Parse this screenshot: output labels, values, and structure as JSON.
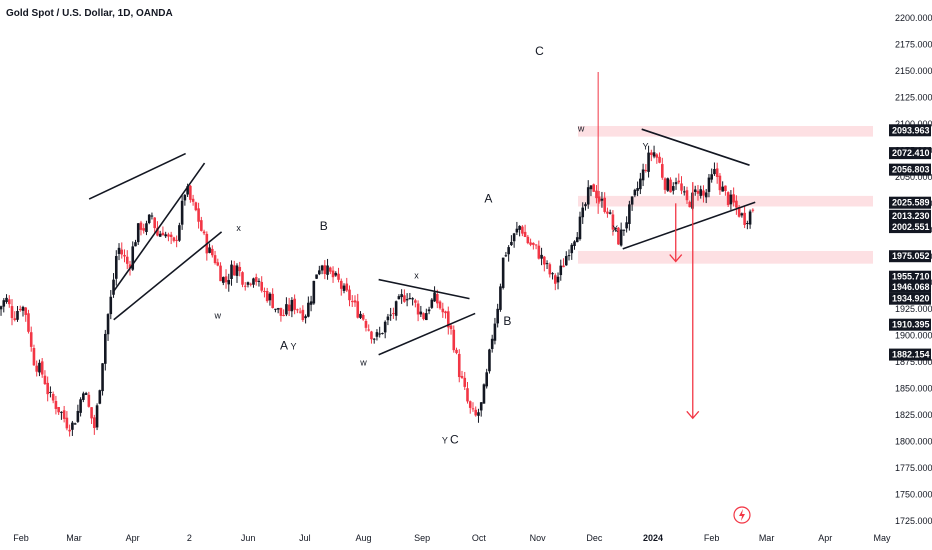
{
  "header": {
    "title": "Gold Spot / U.S. Dollar, 1D, OANDA"
  },
  "colors": {
    "up": "#131722",
    "down": "#f23645",
    "zone": "#fde0e3",
    "tag": "#131722",
    "arrow": "#f23645"
  },
  "chart_data": {
    "type": "candlestick",
    "symbol": "Gold Spot / U.S. Dollar",
    "interval": "1D",
    "source": "OANDA",
    "y_axis": {
      "range": [
        1725,
        2200
      ],
      "ticks": [
        {
          "value": 2200,
          "label": "2200.000"
        },
        {
          "value": 2175,
          "label": "2175.000"
        },
        {
          "value": 2150,
          "label": "2150.000"
        },
        {
          "value": 2125,
          "label": "2125.000"
        },
        {
          "value": 2100,
          "label": "2100.000"
        },
        {
          "value": 2075,
          "label": "2075.000"
        },
        {
          "value": 2050,
          "label": "2050.000"
        },
        {
          "value": 2025,
          "label": "2025.000"
        },
        {
          "value": 2000,
          "label": "2000.000"
        },
        {
          "value": 1975,
          "label": "1975.000"
        },
        {
          "value": 1950,
          "label": "1950.000"
        },
        {
          "value": 1925,
          "label": "1925.000"
        },
        {
          "value": 1900,
          "label": "1900.000"
        },
        {
          "value": 1875,
          "label": "1875.000"
        },
        {
          "value": 1850,
          "label": "1850.000"
        },
        {
          "value": 1825,
          "label": "1825.000"
        },
        {
          "value": 1800,
          "label": "1800.000"
        },
        {
          "value": 1775,
          "label": "1775.000"
        },
        {
          "value": 1750,
          "label": "1750.000"
        },
        {
          "value": 1725,
          "label": "1725.000"
        }
      ]
    },
    "price_tags": [
      {
        "value": 2093.963,
        "label": "2093.963"
      },
      {
        "value": 2072.41,
        "label": "2072.410"
      },
      {
        "value": 2056.803,
        "label": "2056.803"
      },
      {
        "value": 2025.589,
        "label": "2025.589"
      },
      {
        "value": 2013.23,
        "label": "2013.230"
      },
      {
        "value": 2002.551,
        "label": "2002.551"
      },
      {
        "value": 1975.052,
        "label": "1975.052"
      },
      {
        "value": 1955.71,
        "label": "1955.710"
      },
      {
        "value": 1946.068,
        "label": "1946.068"
      },
      {
        "value": 1934.92,
        "label": "1934.920"
      },
      {
        "value": 1910.395,
        "label": "1910.395"
      },
      {
        "value": 1882.154,
        "label": "1882.154"
      }
    ],
    "x_axis": {
      "ticks": [
        {
          "label": "Feb",
          "day": 0
        },
        {
          "label": "Mar",
          "day": 28
        },
        {
          "label": "Apr",
          "day": 59
        },
        {
          "label": "2",
          "day": 89
        },
        {
          "label": "Jun",
          "day": 120
        },
        {
          "label": "Jul",
          "day": 150
        },
        {
          "label": "Aug",
          "day": 181
        },
        {
          "label": "Sep",
          "day": 212
        },
        {
          "label": "Oct",
          "day": 242
        },
        {
          "label": "Nov",
          "day": 273
        },
        {
          "label": "Dec",
          "day": 303
        },
        {
          "label": "2024",
          "day": 334
        },
        {
          "label": "Feb",
          "day": 365
        },
        {
          "label": "Mar",
          "day": 394
        },
        {
          "label": "Apr",
          "day": 425
        },
        {
          "label": "May",
          "day": 455
        }
      ]
    },
    "price_path": [
      {
        "day": -12,
        "price": 1925
      },
      {
        "day": -8,
        "price": 1935
      },
      {
        "day": -4,
        "price": 1918
      },
      {
        "day": 0,
        "price": 1930
      },
      {
        "day": 3,
        "price": 1920
      },
      {
        "day": 6,
        "price": 1880
      },
      {
        "day": 9,
        "price": 1870
      },
      {
        "day": 12,
        "price": 1862
      },
      {
        "day": 15,
        "price": 1842
      },
      {
        "day": 18,
        "price": 1836
      },
      {
        "day": 21,
        "price": 1828
      },
      {
        "day": 24,
        "price": 1818
      },
      {
        "day": 27,
        "price": 1815
      },
      {
        "day": 30,
        "price": 1828
      },
      {
        "day": 33,
        "price": 1852
      },
      {
        "day": 36,
        "price": 1830
      },
      {
        "day": 39,
        "price": 1812
      },
      {
        "day": 42,
        "price": 1860
      },
      {
        "day": 45,
        "price": 1910
      },
      {
        "day": 48,
        "price": 1940
      },
      {
        "day": 51,
        "price": 1985
      },
      {
        "day": 54,
        "price": 1975
      },
      {
        "day": 57,
        "price": 1965
      },
      {
        "day": 60,
        "price": 1990
      },
      {
        "day": 63,
        "price": 2005
      },
      {
        "day": 66,
        "price": 2000
      },
      {
        "day": 69,
        "price": 2015
      },
      {
        "day": 72,
        "price": 1995
      },
      {
        "day": 75,
        "price": 2000
      },
      {
        "day": 78,
        "price": 1990
      },
      {
        "day": 81,
        "price": 1985
      },
      {
        "day": 84,
        "price": 2010
      },
      {
        "day": 87,
        "price": 2040
      },
      {
        "day": 90,
        "price": 2025
      },
      {
        "day": 93,
        "price": 2015
      },
      {
        "day": 96,
        "price": 1995
      },
      {
        "day": 99,
        "price": 1980
      },
      {
        "day": 102,
        "price": 1975
      },
      {
        "day": 105,
        "price": 1960
      },
      {
        "day": 108,
        "price": 1950
      },
      {
        "day": 111,
        "price": 1962
      },
      {
        "day": 114,
        "price": 1965
      },
      {
        "day": 117,
        "price": 1955
      },
      {
        "day": 120,
        "price": 1950
      },
      {
        "day": 123,
        "price": 1960
      },
      {
        "day": 126,
        "price": 1945
      },
      {
        "day": 129,
        "price": 1940
      },
      {
        "day": 132,
        "price": 1935
      },
      {
        "day": 135,
        "price": 1925
      },
      {
        "day": 138,
        "price": 1918
      },
      {
        "day": 141,
        "price": 1925
      },
      {
        "day": 144,
        "price": 1930
      },
      {
        "day": 147,
        "price": 1925
      },
      {
        "day": 150,
        "price": 1920
      },
      {
        "day": 153,
        "price": 1935
      },
      {
        "day": 156,
        "price": 1960
      },
      {
        "day": 159,
        "price": 1970
      },
      {
        "day": 162,
        "price": 1960
      },
      {
        "day": 165,
        "price": 1955
      },
      {
        "day": 168,
        "price": 1950
      },
      {
        "day": 171,
        "price": 1940
      },
      {
        "day": 174,
        "price": 1935
      },
      {
        "day": 177,
        "price": 1925
      },
      {
        "day": 180,
        "price": 1920
      },
      {
        "day": 183,
        "price": 1910
      },
      {
        "day": 186,
        "price": 1900
      },
      {
        "day": 189,
        "price": 1898
      },
      {
        "day": 192,
        "price": 1910
      },
      {
        "day": 195,
        "price": 1918
      },
      {
        "day": 198,
        "price": 1925
      },
      {
        "day": 201,
        "price": 1935
      },
      {
        "day": 204,
        "price": 1940
      },
      {
        "day": 207,
        "price": 1932
      },
      {
        "day": 210,
        "price": 1925
      },
      {
        "day": 213,
        "price": 1918
      },
      {
        "day": 216,
        "price": 1930
      },
      {
        "day": 219,
        "price": 1935
      },
      {
        "day": 222,
        "price": 1925
      },
      {
        "day": 225,
        "price": 1915
      },
      {
        "day": 228,
        "price": 1900
      },
      {
        "day": 231,
        "price": 1870
      },
      {
        "day": 234,
        "price": 1850
      },
      {
        "day": 237,
        "price": 1830
      },
      {
        "day": 240,
        "price": 1822
      },
      {
        "day": 243,
        "price": 1832
      },
      {
        "day": 246,
        "price": 1860
      },
      {
        "day": 249,
        "price": 1900
      },
      {
        "day": 252,
        "price": 1930
      },
      {
        "day": 255,
        "price": 1975
      },
      {
        "day": 258,
        "price": 1985
      },
      {
        "day": 261,
        "price": 1995
      },
      {
        "day": 264,
        "price": 2005
      },
      {
        "day": 267,
        "price": 1990
      },
      {
        "day": 270,
        "price": 1985
      },
      {
        "day": 273,
        "price": 1980
      },
      {
        "day": 276,
        "price": 1970
      },
      {
        "day": 279,
        "price": 1960
      },
      {
        "day": 282,
        "price": 1950
      },
      {
        "day": 285,
        "price": 1960
      },
      {
        "day": 288,
        "price": 1975
      },
      {
        "day": 291,
        "price": 1990
      },
      {
        "day": 294,
        "price": 2000
      },
      {
        "day": 297,
        "price": 2015
      },
      {
        "day": 300,
        "price": 2035
      },
      {
        "day": 303,
        "price": 2040
      },
      {
        "day": 305,
        "price": 2030
      },
      {
        "day": 307,
        "price": 2025
      },
      {
        "day": 310,
        "price": 2020
      },
      {
        "day": 313,
        "price": 2000
      },
      {
        "day": 316,
        "price": 1990
      },
      {
        "day": 319,
        "price": 2005
      },
      {
        "day": 322,
        "price": 2020
      },
      {
        "day": 325,
        "price": 2035
      },
      {
        "day": 328,
        "price": 2050
      },
      {
        "day": 331,
        "price": 2065
      },
      {
        "day": 334,
        "price": 2075
      },
      {
        "day": 337,
        "price": 2065
      },
      {
        "day": 340,
        "price": 2045
      },
      {
        "day": 343,
        "price": 2040
      },
      {
        "day": 346,
        "price": 2050
      },
      {
        "day": 349,
        "price": 2035
      },
      {
        "day": 352,
        "price": 2025
      },
      {
        "day": 355,
        "price": 2030
      },
      {
        "day": 358,
        "price": 2040
      },
      {
        "day": 361,
        "price": 2030
      },
      {
        "day": 364,
        "price": 2045
      },
      {
        "day": 367,
        "price": 2055
      },
      {
        "day": 370,
        "price": 2040
      },
      {
        "day": 373,
        "price": 2030
      },
      {
        "day": 376,
        "price": 2025
      },
      {
        "day": 379,
        "price": 2018
      },
      {
        "day": 382,
        "price": 2010
      },
      {
        "day": 385,
        "price": 2015
      },
      {
        "day": 388,
        "price": 2025
      }
    ],
    "spikes": [
      {
        "day": 305,
        "high": 2149,
        "low": 2015
      }
    ],
    "zones": [
      {
        "from": 2088,
        "to": 2098
      },
      {
        "from": 2022,
        "to": 2032
      },
      {
        "from": 1968,
        "to": 1980
      }
    ],
    "trendlines": [
      {
        "from": {
          "day": 49,
          "price": 1942
        },
        "to": {
          "day": 97,
          "price": 2063
        }
      },
      {
        "from": {
          "day": 36,
          "price": 2029
        },
        "to": {
          "day": 87,
          "price": 2072
        }
      },
      {
        "from": {
          "day": 49,
          "price": 1915
        },
        "to": {
          "day": 106,
          "price": 1998
        }
      },
      {
        "from": {
          "day": 189,
          "price": 1953
        },
        "to": {
          "day": 237,
          "price": 1935
        }
      },
      {
        "from": {
          "day": 189,
          "price": 1882
        },
        "to": {
          "day": 240,
          "price": 1921
        }
      },
      {
        "from": {
          "day": 328,
          "price": 2095
        },
        "to": {
          "day": 385,
          "price": 2061
        }
      },
      {
        "from": {
          "day": 318,
          "price": 1982
        },
        "to": {
          "day": 388,
          "price": 2026
        }
      }
    ],
    "wave_labels": [
      {
        "text": "x",
        "day": 115,
        "price": 1999,
        "size": "small"
      },
      {
        "text": "w",
        "day": 104,
        "price": 1916,
        "size": "small"
      },
      {
        "text": "A",
        "day": 139,
        "price": 1887,
        "size": "big"
      },
      {
        "text": "Y",
        "day": 144,
        "price": 1887,
        "size": "small"
      },
      {
        "text": "B",
        "day": 160,
        "price": 2000,
        "size": "big"
      },
      {
        "text": "x",
        "day": 209,
        "price": 1954,
        "size": "small"
      },
      {
        "text": "w",
        "day": 181,
        "price": 1872,
        "size": "small"
      },
      {
        "text": "Y",
        "day": 224,
        "price": 1798,
        "size": "small"
      },
      {
        "text": "C",
        "day": 229,
        "price": 1798,
        "size": "big"
      },
      {
        "text": "A",
        "day": 247,
        "price": 2026,
        "size": "big"
      },
      {
        "text": "B",
        "day": 257,
        "price": 1910,
        "size": "big"
      },
      {
        "text": "C",
        "day": 274,
        "price": 2165,
        "size": "big"
      },
      {
        "text": "w",
        "day": 296,
        "price": 2093,
        "size": "small"
      },
      {
        "text": "Y",
        "day": 330,
        "price": 2076,
        "size": "small"
      },
      {
        "text": "X",
        "day": 314,
        "price": 1998,
        "size": "small"
      }
    ],
    "arrows": [
      {
        "day": 355,
        "price_from": 2045,
        "price_to": 1822
      },
      {
        "day": 346,
        "price_from": 2025,
        "price_to": 1970
      }
    ]
  }
}
